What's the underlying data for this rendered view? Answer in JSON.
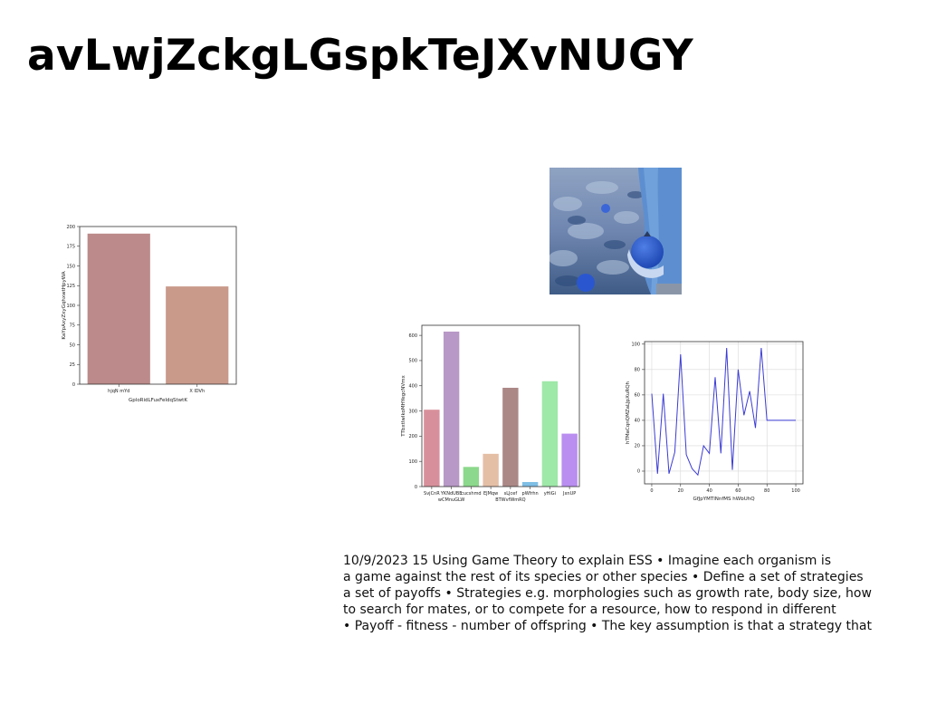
{
  "slide": {
    "title": "avLwjZckgLGspkTeJXvNUGY",
    "body_lines": [
      "10/9/2023 15 Using Game Theory to explain ESS • Imagine each organism is",
      "a game against the rest of its species or other species • Define a set of strategies",
      "a set of payoffs • Strategies e.g. morphologies such as growth rate, body size, how",
      "to search for mates, or to compete for a resource, how to respond in different",
      "• Payoff - fitness - number of offspring • The key assumption is that a strategy that"
    ]
  },
  "chart_data": [
    {
      "type": "bar",
      "categories": [
        "hjqN mYd",
        "X  lDVh"
      ],
      "values": [
        191,
        124
      ],
      "colors": [
        "#bc8a8a",
        "#c9998a"
      ],
      "xlabel": "GploRidLFuxFeIdqStwtK",
      "ylabel": "KaYpAxyZxyGqhxwtHpyWA",
      "ylim": [
        0,
        200
      ],
      "yticks": [
        0,
        25,
        50,
        75,
        100,
        125,
        150,
        175,
        200
      ],
      "grid": false
    },
    {
      "type": "bar",
      "categories": [
        "SvjCnR",
        "YKNdUBE",
        "cucshmd",
        "EJMqw",
        "sLJcef",
        "pWfrhn",
        "yHiGi",
        "JxnUP"
      ],
      "categories_row2": [
        "",
        "wCMnuGLW",
        "",
        "",
        "BTWvfWmRQ",
        "",
        "",
        ""
      ],
      "values": [
        305,
        615,
        78,
        130,
        392,
        18,
        418,
        210
      ],
      "colors": [
        "#d7909b",
        "#b898c6",
        "#8cd88c",
        "#e4bfa6",
        "#ab8886",
        "#7fbfe6",
        "#9ee8a8",
        "#b98ef0"
      ],
      "xlabel": "",
      "ylabel": "TTbxtIwIkoMHYegcNVmx",
      "ylim": [
        0,
        640
      ],
      "yticks": [
        0,
        100,
        200,
        300,
        400,
        500,
        600
      ],
      "grid": false
    },
    {
      "type": "line",
      "x": [
        0,
        4,
        8,
        12,
        16,
        20,
        24,
        28,
        32,
        36,
        40,
        44,
        48,
        52,
        56,
        60,
        64,
        68,
        72,
        76,
        80,
        84,
        88,
        92,
        96,
        100
      ],
      "y": [
        61,
        -2,
        61,
        -2,
        15,
        92,
        13,
        2,
        -3,
        20,
        14,
        74,
        14,
        97,
        1,
        80,
        44,
        63,
        34,
        97,
        40,
        40,
        40,
        40,
        40,
        40
      ],
      "series": [
        {
          "name": "",
          "color": "#3b3bd4"
        }
      ],
      "xlabel": "GfJpYMTlNnfMS hWbUhQ",
      "ylabel": "hTMaCqnQMZaLJpXuRQh",
      "xlim": [
        -5,
        105
      ],
      "ylim": [
        -10,
        102
      ],
      "xticks": [
        0,
        20,
        40,
        60,
        80,
        100
      ],
      "yticks": [
        0,
        20,
        40,
        60,
        80,
        100
      ],
      "grid": true
    }
  ]
}
